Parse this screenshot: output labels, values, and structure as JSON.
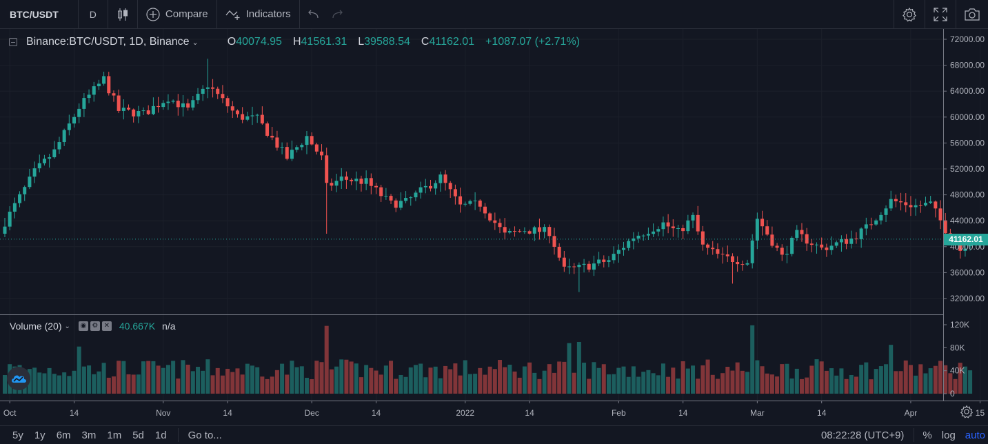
{
  "toolbar": {
    "symbol": "BTC/USDT",
    "interval": "D",
    "compare_label": "Compare",
    "indicators_label": "Indicators"
  },
  "legend": {
    "title": "Binance:BTC/USDT, 1D, Binance",
    "open_key": "O",
    "open": "40074.95",
    "high_key": "H",
    "high": "41561.31",
    "low_key": "L",
    "low": "39588.54",
    "close_key": "C",
    "close": "41162.01",
    "change": "+1087.07 (+2.71%)"
  },
  "volume_legend": {
    "title": "Volume (20)",
    "value": "40.667K",
    "ma": "n/a"
  },
  "price_axis": {
    "labels": [
      "72000.00",
      "68000.00",
      "64000.00",
      "60000.00",
      "56000.00",
      "52000.00",
      "48000.00",
      "44000.00",
      "40000.00",
      "36000.00",
      "32000.00"
    ],
    "last_price": "41162.01"
  },
  "volume_axis": {
    "labels": [
      "120K",
      "80K",
      "40K",
      "0"
    ]
  },
  "time_axis": {
    "labels": [
      "Oct",
      "14",
      "Nov",
      "14",
      "Dec",
      "14",
      "2022",
      "14",
      "Feb",
      "14",
      "Mar",
      "14",
      "Apr",
      "15"
    ]
  },
  "bottombar": {
    "ranges": [
      "5y",
      "1y",
      "6m",
      "3m",
      "1m",
      "5d",
      "1d"
    ],
    "goto": "Go to...",
    "clock": "08:22:28 (UTC+9)",
    "percent": "%",
    "log": "log",
    "auto": "auto"
  },
  "colors": {
    "up": "#26a69a",
    "down": "#ef5350",
    "background": "#131722",
    "grid": "#1e222d",
    "accent": "#2962ff"
  },
  "chart_data": {
    "type": "candlestick",
    "title": "Binance:BTC/USDT, 1D, Binance",
    "price_range": [
      30000,
      73000
    ],
    "volume_range": [
      0,
      125000
    ],
    "anchors": [
      [
        "2021-09-30",
        43800
      ],
      [
        "2021-10-06",
        51500
      ],
      [
        "2021-10-10",
        54700
      ],
      [
        "2021-10-15",
        61500
      ],
      [
        "2021-10-20",
        65900
      ],
      [
        "2021-10-23",
        61000
      ],
      [
        "2021-10-28",
        60500
      ],
      [
        "2021-11-02",
        63000
      ],
      [
        "2021-11-06",
        61100
      ],
      [
        "2021-11-10",
        65000
      ],
      [
        "2021-11-16",
        60100
      ],
      [
        "2021-11-20",
        59700
      ],
      [
        "2021-11-26",
        53700
      ],
      [
        "2021-11-30",
        57000
      ],
      [
        "2021-12-03",
        53700
      ],
      [
        "2021-12-04",
        49200
      ],
      [
        "2021-12-07",
        50500
      ],
      [
        "2021-12-12",
        50000
      ],
      [
        "2021-12-17",
        46600
      ],
      [
        "2021-12-20",
        46900
      ],
      [
        "2021-12-27",
        50700
      ],
      [
        "2021-12-31",
        46200
      ],
      [
        "2022-01-04",
        46600
      ],
      [
        "2022-01-09",
        41800
      ],
      [
        "2022-01-13",
        42600
      ],
      [
        "2022-01-18",
        42300
      ],
      [
        "2022-01-21",
        36400
      ],
      [
        "2022-01-24",
        36700
      ],
      [
        "2022-01-30",
        37900
      ],
      [
        "2022-02-04",
        41500
      ],
      [
        "2022-02-10",
        43600
      ],
      [
        "2022-02-13",
        42200
      ],
      [
        "2022-02-16",
        44500
      ],
      [
        "2022-02-18",
        40000
      ],
      [
        "2022-02-22",
        38300
      ],
      [
        "2022-02-27",
        37700
      ],
      [
        "2022-03-01",
        44400
      ],
      [
        "2022-03-06",
        38400
      ],
      [
        "2022-03-09",
        41900
      ],
      [
        "2022-03-14",
        39700
      ],
      [
        "2022-03-20",
        41200
      ],
      [
        "2022-03-23",
        42900
      ],
      [
        "2022-03-28",
        47100
      ],
      [
        "2022-04-02",
        46300
      ],
      [
        "2022-04-05",
        46600
      ],
      [
        "2022-04-08",
        42700
      ],
      [
        "2022-04-11",
        39500
      ],
      [
        "2022-04-13",
        41162
      ]
    ]
  }
}
